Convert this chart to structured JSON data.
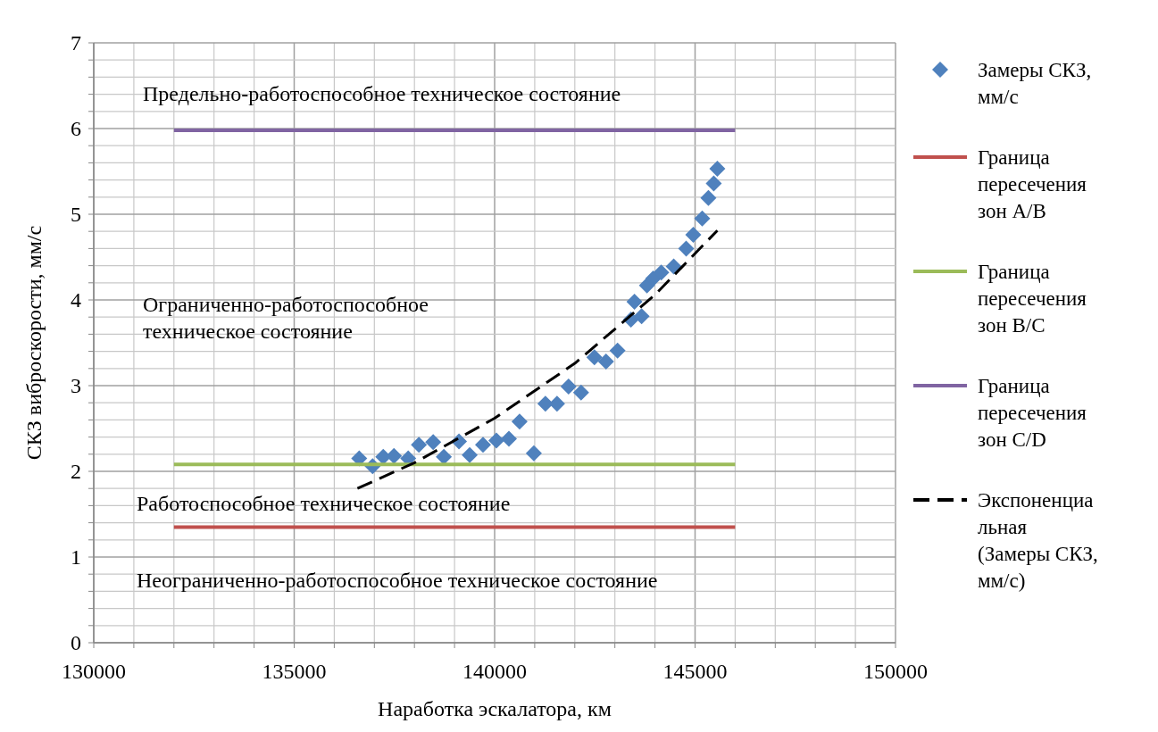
{
  "chart_data": {
    "type": "scatter",
    "xlabel": "Наработка эскалатора, км",
    "ylabel": "СКЗ виброскорости, мм/с",
    "xlim": [
      130000,
      150000
    ],
    "xticks": [
      130000,
      {
        "value": 131000,
        "label": null
      },
      {
        "value": 132000,
        "label": null
      },
      {
        "value": 133000,
        "label": null
      },
      {
        "value": 134000,
        "label": null
      },
      135000,
      {
        "value": 136000,
        "label": null
      },
      {
        "value": 137000,
        "label": null
      },
      {
        "value": 138000,
        "label": null
      },
      {
        "value": 139000,
        "label": null
      },
      140000,
      {
        "value": 141000,
        "label": null
      },
      {
        "value": 142000,
        "label": null
      },
      {
        "value": 143000,
        "label": null
      },
      {
        "value": 144000,
        "label": null
      },
      145000,
      {
        "value": 146000,
        "label": null
      },
      {
        "value": 147000,
        "label": null
      },
      {
        "value": 148000,
        "label": null
      },
      {
        "value": 149000,
        "label": null
      },
      150000
    ],
    "ylim": [
      0,
      7
    ],
    "yticks": [
      0,
      {
        "value": 0.2,
        "label": null
      },
      {
        "value": 0.4,
        "label": null
      },
      {
        "value": 0.6,
        "label": null
      },
      {
        "value": 0.8,
        "label": null
      },
      1,
      {
        "value": 1.2,
        "label": null
      },
      {
        "value": 1.4,
        "label": null
      },
      {
        "value": 1.6,
        "label": null
      },
      {
        "value": 1.8,
        "label": null
      },
      2,
      {
        "value": 2.2,
        "label": null
      },
      {
        "value": 2.4,
        "label": null
      },
      {
        "value": 2.6,
        "label": null
      },
      {
        "value": 2.8,
        "label": null
      },
      3,
      {
        "value": 3.2,
        "label": null
      },
      {
        "value": 3.4,
        "label": null
      },
      {
        "value": 3.6,
        "label": null
      },
      {
        "value": 3.8,
        "label": null
      },
      4,
      {
        "value": 4.2,
        "label": null
      },
      {
        "value": 4.4,
        "label": null
      },
      {
        "value": 4.6,
        "label": null
      },
      {
        "value": 4.8,
        "label": null
      },
      5,
      {
        "value": 5.2,
        "label": null
      },
      {
        "value": 5.4,
        "label": null
      },
      {
        "value": 5.6,
        "label": null
      },
      {
        "value": 5.8,
        "label": null
      },
      6,
      {
        "value": 6.2,
        "label": null
      },
      {
        "value": 6.4,
        "label": null
      },
      {
        "value": 6.6,
        "label": null
      },
      {
        "value": 6.8,
        "label": null
      },
      7
    ],
    "grid": true,
    "legend": "right",
    "series": [
      {
        "name": "Замеры СКЗ, мм/с",
        "marker": "diamond",
        "color": "#4f81bd",
        "x": [
          136622,
          136956,
          137222,
          137489,
          137844,
          138111,
          138467,
          138733,
          139111,
          139378,
          139711,
          140044,
          140356,
          140622,
          140978,
          141267,
          141556,
          141844,
          142156,
          142489,
          142778,
          143067,
          143400,
          143489,
          143667,
          143800,
          143956,
          144156,
          144467,
          144778,
          144956,
          145178,
          145333,
          145467,
          145556
        ],
        "values": [
          2.15,
          2.06,
          2.17,
          2.18,
          2.15,
          2.31,
          2.34,
          2.17,
          2.35,
          2.19,
          2.31,
          2.36,
          2.38,
          2.58,
          2.21,
          2.79,
          2.79,
          2.99,
          2.92,
          3.33,
          3.28,
          3.41,
          3.77,
          3.98,
          3.81,
          4.17,
          4.25,
          4.32,
          4.39,
          4.6,
          4.76,
          4.95,
          5.19,
          5.36,
          5.53
        ]
      },
      {
        "name": "Граница пересечения зон A/B",
        "type": "line",
        "marker": "none",
        "color": "#c0504d",
        "x": [
          132000,
          146000
        ],
        "values": [
          1.35,
          1.35
        ]
      },
      {
        "name": "Граница пересечения зон B/C",
        "type": "line",
        "marker": "none",
        "color": "#9bbb59",
        "x": [
          132000,
          146000
        ],
        "values": [
          2.08,
          2.08
        ]
      },
      {
        "name": "Граница пересечения зон C/D",
        "type": "line",
        "marker": "none",
        "color": "#8064a2",
        "x": [
          132000,
          146000
        ],
        "values": [
          5.98,
          5.98
        ]
      },
      {
        "name": "Экспоненциальная (Замеры СКЗ, мм/с)",
        "type": "line",
        "marker": "none",
        "line_style": "dashed",
        "color": "#000000",
        "x": [
          136578,
          138000,
          140000,
          142000,
          144000,
          145556
        ],
        "values": [
          1.8,
          2.1,
          2.62,
          3.26,
          4.06,
          4.81
        ]
      }
    ],
    "annotations": [
      "Предельно-работоспособное техническое состояние",
      "Ограниченно-работоспособное техническое состояние",
      "Работоспособное техническое состояние",
      "Неограниченно-работоспособное техническое состояние"
    ]
  }
}
